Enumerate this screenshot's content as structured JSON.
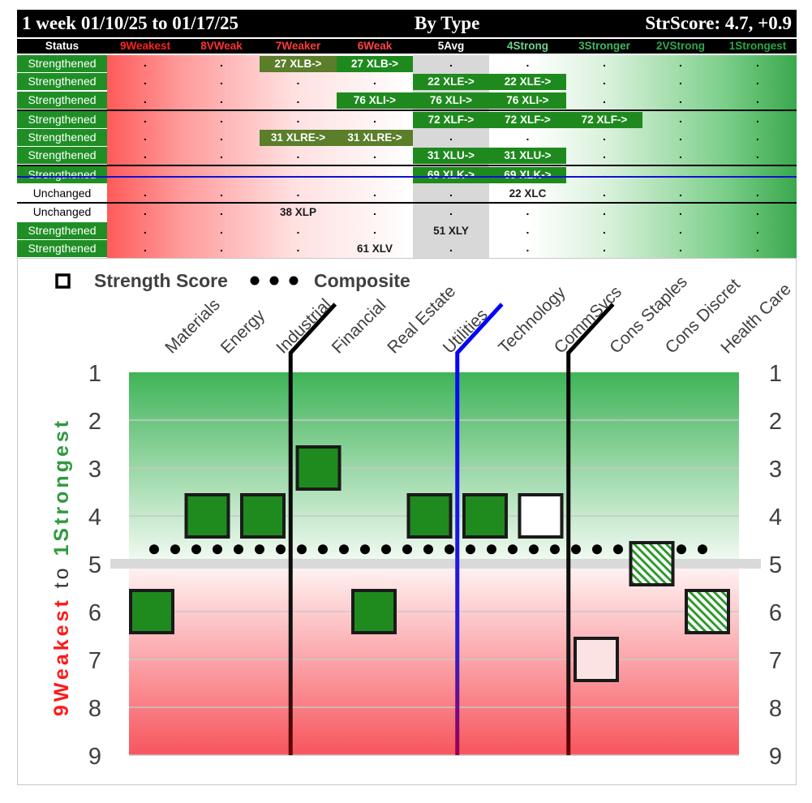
{
  "header": {
    "period": "1 week 01/10/25 to 01/17/25",
    "by_type": "By Type",
    "str_score": "StrScore: 4.7, +0.9"
  },
  "columns": [
    {
      "label": "Status",
      "color": "#ffffff"
    },
    {
      "label": "9Weakest",
      "color": "#ff2020"
    },
    {
      "label": "8VWeak",
      "color": "#ff3030"
    },
    {
      "label": "7Weaker",
      "color": "#ff3b3b"
    },
    {
      "label": "6Weak",
      "color": "#ff4545"
    },
    {
      "label": "5Avg",
      "color": "#ffffff"
    },
    {
      "label": "4Strong",
      "color": "#6fd38f"
    },
    {
      "label": "3Stronger",
      "color": "#3fb864"
    },
    {
      "label": "2VStrong",
      "color": "#2fa84f"
    },
    {
      "label": "1Strongest",
      "color": "#29a845"
    }
  ],
  "table": [
    {
      "status": "Strengthened",
      "cells": [
        {
          "col": 3,
          "text": "27 XLB->",
          "style": "olive"
        },
        {
          "col": 4,
          "text": "27 XLB->",
          "style": "green"
        }
      ]
    },
    {
      "status": "Strengthened",
      "cells": [
        {
          "col": 5,
          "text": "22 XLE->",
          "style": "green"
        },
        {
          "col": 6,
          "text": "22 XLE->",
          "style": "green"
        }
      ]
    },
    {
      "status": "Strengthened",
      "cells": [
        {
          "col": 4,
          "text": "76 XLI->",
          "style": "green"
        },
        {
          "col": 5,
          "text": "76 XLI->",
          "style": "green"
        },
        {
          "col": 6,
          "text": "76 XLI->",
          "style": "green"
        }
      ]
    },
    {
      "status": "Strengthened",
      "cells": [
        {
          "col": 5,
          "text": "72 XLF->",
          "style": "green"
        },
        {
          "col": 6,
          "text": "72 XLF->",
          "style": "green"
        },
        {
          "col": 7,
          "text": "72 XLF->",
          "style": "green"
        }
      ]
    },
    {
      "status": "Strengthened",
      "cells": [
        {
          "col": 3,
          "text": "31 XLRE->",
          "style": "olive"
        },
        {
          "col": 4,
          "text": "31 XLRE->",
          "style": "olive"
        }
      ]
    },
    {
      "status": "Strengthened",
      "cells": [
        {
          "col": 5,
          "text": "31 XLU->",
          "style": "green"
        },
        {
          "col": 6,
          "text": "31 XLU->",
          "style": "green"
        }
      ]
    },
    {
      "status": "Strengthened",
      "cells": [
        {
          "col": 5,
          "text": "69 XLK->",
          "style": "green"
        },
        {
          "col": 6,
          "text": "69 XLK->",
          "style": "green"
        }
      ]
    },
    {
      "status": "Unchanged",
      "cells": [
        {
          "col": 6,
          "text": "22 XLC",
          "style": "plain"
        }
      ]
    },
    {
      "status": "Unchanged",
      "cells": [
        {
          "col": 3,
          "text": "38 XLP",
          "style": "plain"
        }
      ]
    },
    {
      "status": "Strengthened",
      "cells": [
        {
          "col": 5,
          "text": "51 XLY",
          "style": "plain"
        }
      ]
    },
    {
      "status": "Strengthened",
      "cells": [
        {
          "col": 4,
          "text": "61 XLV",
          "style": "plain"
        }
      ]
    }
  ],
  "legend": {
    "strength_score": "Strength Score",
    "composite": "Composite"
  },
  "chart_data": {
    "type": "scatter",
    "categories": [
      "Materials",
      "Energy",
      "Industrial",
      "Financial",
      "Real Estate",
      "Utilities",
      "Technology",
      "CommSvcs",
      "Cons Staples",
      "Cons Discret",
      "Health Care"
    ],
    "series": [
      {
        "name": "Strength Score",
        "values": [
          6,
          4,
          4,
          3,
          6,
          4,
          4,
          4,
          7,
          5,
          6
        ],
        "styles": [
          "filled",
          "filled",
          "filled",
          "filled",
          "filled",
          "filled",
          "filled",
          "empty",
          "empty",
          "hatched",
          "hatched"
        ]
      },
      {
        "name": "Composite",
        "values": [
          4.7,
          4.7,
          4.7,
          4.7,
          4.7,
          4.7,
          4.7,
          4.7,
          4.7,
          4.7,
          4.7
        ]
      }
    ],
    "ylim": [
      1,
      9
    ],
    "y_ticks": [
      "1",
      "2",
      "3",
      "4",
      "5",
      "6",
      "7",
      "8",
      "9"
    ],
    "y_axis_label_left": "9Weakest",
    "y_axis_label_mid": "to",
    "y_axis_label_right": "1Strongest",
    "grid": true,
    "dividers": [
      {
        "after_category": 2,
        "color": "#000000"
      },
      {
        "after_category": 5,
        "color": "#0000ff"
      },
      {
        "after_category": 7,
        "color": "#000000"
      }
    ]
  }
}
